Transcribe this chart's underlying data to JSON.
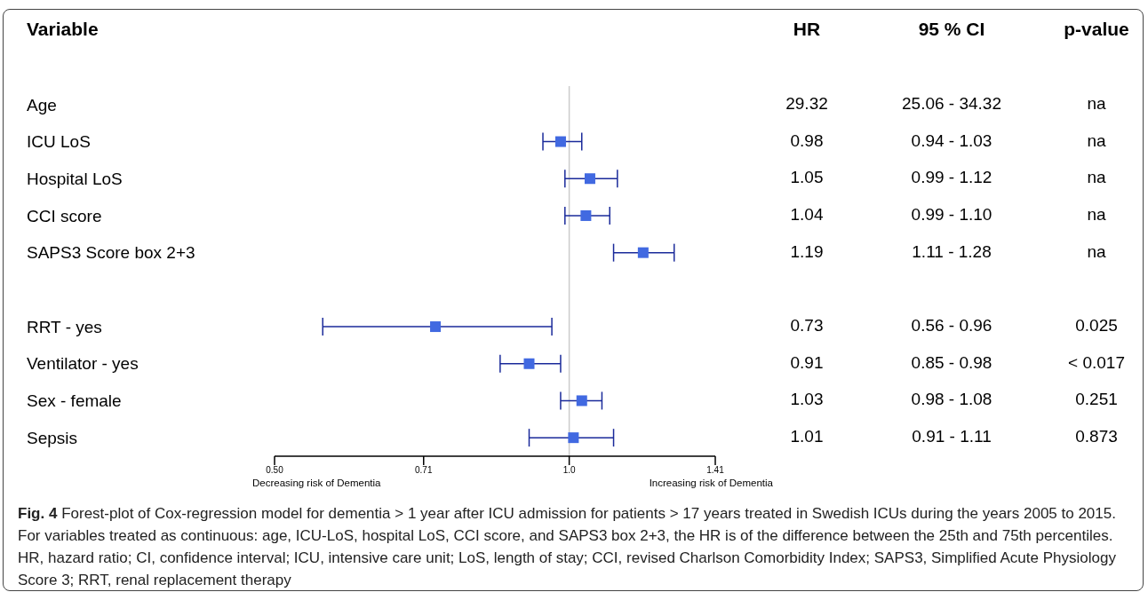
{
  "chart_data": {
    "type": "scatter",
    "orientation": "horizontal",
    "log": "x",
    "marker": "square",
    "categories": [
      "Age",
      "ICU LoS",
      "Hospital LoS",
      "CCI score",
      "SAPS3 Score box 2+3",
      null,
      "RRT - yes",
      "Ventilator - yes",
      "Sex - female",
      "Sepsis"
    ],
    "series": [
      {
        "color": "#4169e1",
        "values": [
          null,
          0.98,
          1.05,
          1.04,
          1.19,
          null,
          0.73,
          0.91,
          1.03,
          1.01
        ],
        "errors": [
          null,
          [
            0.94,
            1.03
          ],
          [
            0.99,
            1.12
          ],
          [
            0.99,
            1.1
          ],
          [
            1.11,
            1.28
          ],
          null,
          [
            0.56,
            0.96
          ],
          [
            0.85,
            0.98
          ],
          [
            0.98,
            1.08
          ],
          [
            0.91,
            1.11
          ]
        ],
        "value_labels": [
          "29.32",
          "0.98",
          "1.05",
          "1.04",
          "1.19",
          null,
          "0.73",
          "0.91",
          "1.03",
          "1.01"
        ]
      }
    ],
    "xlim": [
      0.5,
      1.41
    ],
    "xticks": [
      {
        "value": 0.5,
        "label": "0.50"
      },
      0.71,
      {
        "value": 1,
        "label": "1.0"
      },
      1.41
    ],
    "ref_lines": [
      {
        "axis": "x",
        "value": 1,
        "color": "#cccccc"
      }
    ],
    "annotations": [
      "Variable",
      "HR",
      "95 % CI",
      "p-value",
      "25.06 - 34.32",
      "na",
      "0.94 - 1.03",
      "na",
      "0.99 - 1.12",
      "na",
      "0.99 - 1.10",
      "na",
      "1.11 - 1.28",
      "na",
      "0.56 - 0.96",
      "0.025",
      "0.85 - 0.98",
      "< 0.017",
      "0.98 - 1.08",
      "0.251",
      "0.91 - 1.11",
      "0.873",
      "Decreasing risk of Dementia",
      "Increasing risk of Dementia",
      "Fig. 4 Forest-plot of Cox-regression model for dementia > 1 year after ICU admission for patients > 17 years treated in Swedish ICUs during the years 2005 to 2015. For variables treated as continuous: age, ICU-LoS, hospital LoS, CCI score, and SAPS3 box 2+3, the HR is of the difference between the 25th and 75th percentiles. HR, hazard ratio; CI, confidence interval; ICU, intensive care unit; LoS, length of stay; CCI, revised Charlson Comorbidity Index; SAPS3, Simplified Acute Physiology Score 3; RRT, renal replacement therapy"
    ]
  }
}
